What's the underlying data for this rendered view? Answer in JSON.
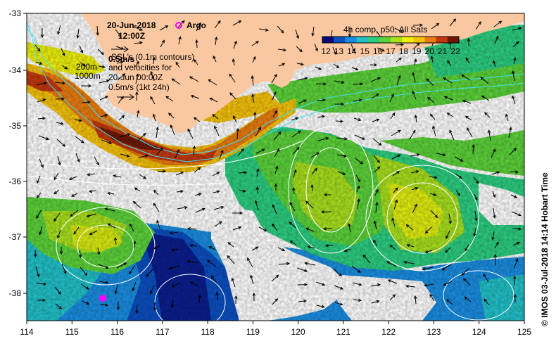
{
  "map": {
    "date": "20-Jun-2018",
    "time": "12:00Z",
    "argo_label": "Argo",
    "colorbar_title": "4h comp, p50, All Sats",
    "colorbar_ticks": [
      "12",
      "13",
      "14",
      "15",
      "16",
      "17",
      "18",
      "19",
      "20",
      "21",
      "22"
    ],
    "colorbar_colors": [
      "#0a0a78",
      "#0b4fc0",
      "#1a8de0",
      "#22c0c8",
      "#2ccd80",
      "#5cd23a",
      "#a8e01e",
      "#eef00c",
      "#f4c20c",
      "#e87c10",
      "#c2380e",
      "#6e1806"
    ],
    "legend": {
      "speed_label": "0.5m/s",
      "contour_label": "SSL's (0.1m contours)",
      "velocity_line1": "and velocities for",
      "velocity_line2": "20-Jun 00:00Z",
      "velocity_line3": "0.5m/s (1kt 24h)",
      "isobath_200": "200m",
      "isobath_1000": "1000m"
    },
    "credit": "© IMOS 03-Jul-2018 14:14 Hobart Time",
    "x_ticks": [
      "114",
      "115",
      "116",
      "117",
      "118",
      "119",
      "120",
      "121",
      "122",
      "123",
      "124",
      "125"
    ],
    "y_ticks": [
      "-33",
      "-34",
      "-35",
      "-36",
      "-37",
      "-38"
    ],
    "colors": {
      "land": "#fac8a0",
      "isobath": "#40e0f0",
      "contour": "#ffffff",
      "argo": "#ff00ff"
    }
  }
}
